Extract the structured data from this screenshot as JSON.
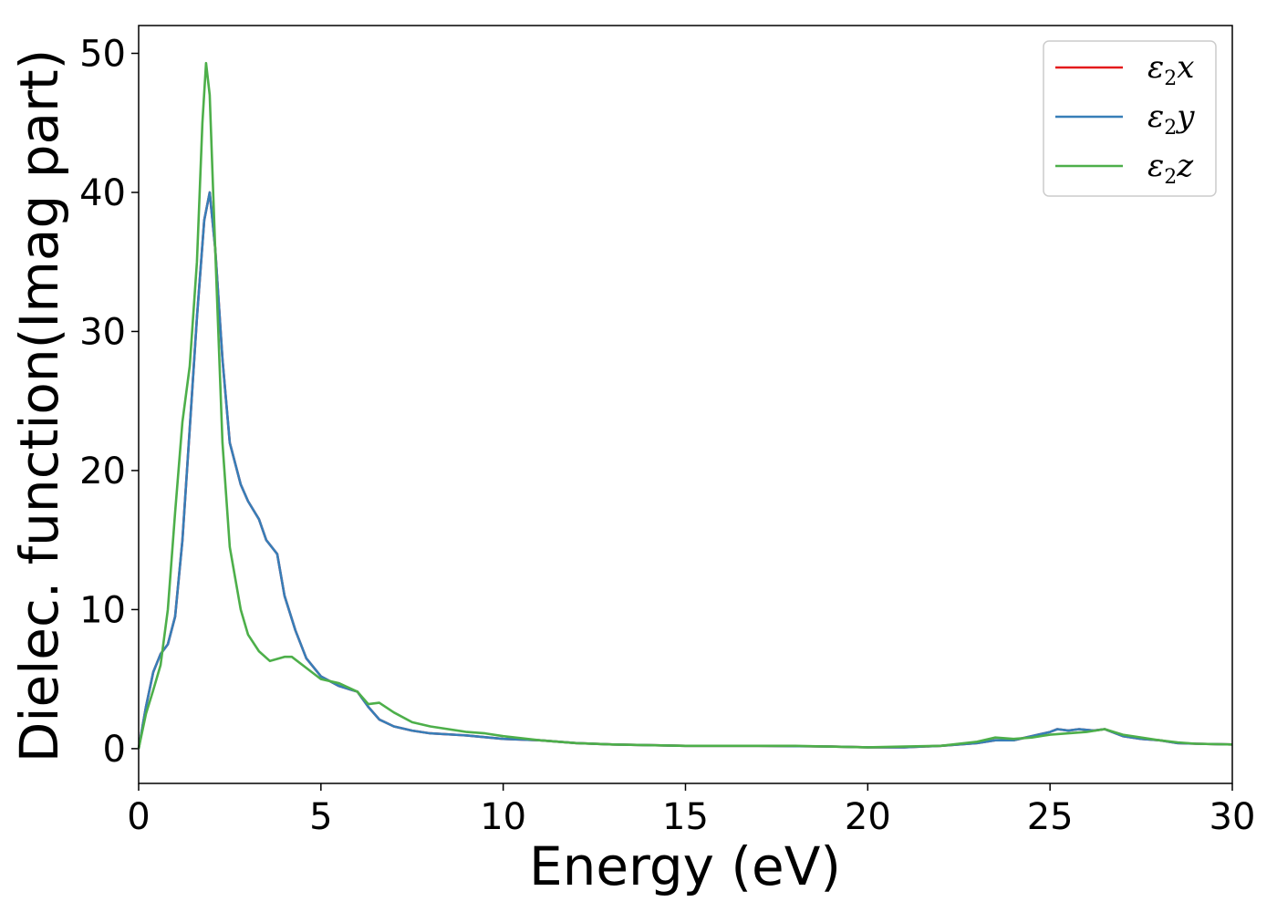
{
  "chart_data": {
    "type": "line",
    "title": "",
    "xlabel": "Energy (eV)",
    "ylabel": "Dielec. function(Imag part)",
    "xlim": [
      0,
      30
    ],
    "ylim": [
      -2.5,
      52
    ],
    "xticks": [
      0,
      5,
      10,
      15,
      20,
      25,
      30
    ],
    "yticks": [
      0,
      10,
      20,
      30,
      40,
      50
    ],
    "grid": false,
    "legend_position": "top-right",
    "series": [
      {
        "name": "ε2x",
        "label_base": "ε",
        "label_sub": "2",
        "label_var": "x",
        "color": "#e41a1c",
        "points": [
          [
            0,
            0
          ],
          [
            0.2,
            3
          ],
          [
            0.4,
            5.5
          ],
          [
            0.6,
            6.8
          ],
          [
            0.8,
            7.5
          ],
          [
            1.0,
            9.5
          ],
          [
            1.2,
            15
          ],
          [
            1.4,
            23
          ],
          [
            1.6,
            31
          ],
          [
            1.8,
            38
          ],
          [
            1.95,
            40
          ],
          [
            2.1,
            36
          ],
          [
            2.3,
            28
          ],
          [
            2.5,
            22
          ],
          [
            2.8,
            19
          ],
          [
            3.0,
            17.8
          ],
          [
            3.3,
            16.5
          ],
          [
            3.5,
            15
          ],
          [
            3.8,
            14
          ],
          [
            4.0,
            11
          ],
          [
            4.3,
            8.5
          ],
          [
            4.6,
            6.5
          ],
          [
            5.0,
            5.2
          ],
          [
            5.5,
            4.5
          ],
          [
            6.0,
            4.1
          ],
          [
            6.3,
            3.0
          ],
          [
            6.6,
            2.1
          ],
          [
            7.0,
            1.6
          ],
          [
            7.5,
            1.3
          ],
          [
            8.0,
            1.1
          ],
          [
            9.0,
            0.95
          ],
          [
            10.0,
            0.7
          ],
          [
            11.0,
            0.6
          ],
          [
            12.0,
            0.4
          ],
          [
            13.0,
            0.3
          ],
          [
            15.0,
            0.2
          ],
          [
            17.0,
            0.2
          ],
          [
            19.0,
            0.15
          ],
          [
            20.0,
            0.1
          ],
          [
            21.0,
            0.1
          ],
          [
            22.0,
            0.2
          ],
          [
            23.0,
            0.4
          ],
          [
            23.5,
            0.6
          ],
          [
            24.0,
            0.6
          ],
          [
            24.5,
            0.9
          ],
          [
            25.0,
            1.2
          ],
          [
            25.2,
            1.4
          ],
          [
            25.5,
            1.3
          ],
          [
            25.8,
            1.4
          ],
          [
            26.2,
            1.3
          ],
          [
            26.5,
            1.4
          ],
          [
            27.0,
            0.9
          ],
          [
            27.5,
            0.7
          ],
          [
            28.0,
            0.6
          ],
          [
            28.5,
            0.4
          ],
          [
            29.0,
            0.35
          ],
          [
            30.0,
            0.3
          ]
        ]
      },
      {
        "name": "ε2y",
        "label_base": "ε",
        "label_sub": "2",
        "label_var": "y",
        "color": "#377eb8",
        "points": [
          [
            0,
            0
          ],
          [
            0.2,
            3
          ],
          [
            0.4,
            5.5
          ],
          [
            0.6,
            6.8
          ],
          [
            0.8,
            7.5
          ],
          [
            1.0,
            9.5
          ],
          [
            1.2,
            15
          ],
          [
            1.4,
            23
          ],
          [
            1.6,
            31
          ],
          [
            1.8,
            38
          ],
          [
            1.95,
            40
          ],
          [
            2.1,
            36
          ],
          [
            2.3,
            28
          ],
          [
            2.5,
            22
          ],
          [
            2.8,
            19
          ],
          [
            3.0,
            17.8
          ],
          [
            3.3,
            16.5
          ],
          [
            3.5,
            15
          ],
          [
            3.8,
            14
          ],
          [
            4.0,
            11
          ],
          [
            4.3,
            8.5
          ],
          [
            4.6,
            6.5
          ],
          [
            5.0,
            5.2
          ],
          [
            5.5,
            4.5
          ],
          [
            6.0,
            4.1
          ],
          [
            6.3,
            3.0
          ],
          [
            6.6,
            2.1
          ],
          [
            7.0,
            1.6
          ],
          [
            7.5,
            1.3
          ],
          [
            8.0,
            1.1
          ],
          [
            9.0,
            0.95
          ],
          [
            10.0,
            0.7
          ],
          [
            11.0,
            0.6
          ],
          [
            12.0,
            0.4
          ],
          [
            13.0,
            0.3
          ],
          [
            15.0,
            0.2
          ],
          [
            17.0,
            0.2
          ],
          [
            19.0,
            0.15
          ],
          [
            20.0,
            0.1
          ],
          [
            21.0,
            0.1
          ],
          [
            22.0,
            0.2
          ],
          [
            23.0,
            0.4
          ],
          [
            23.5,
            0.6
          ],
          [
            24.0,
            0.6
          ],
          [
            24.5,
            0.9
          ],
          [
            25.0,
            1.2
          ],
          [
            25.2,
            1.4
          ],
          [
            25.5,
            1.3
          ],
          [
            25.8,
            1.4
          ],
          [
            26.2,
            1.3
          ],
          [
            26.5,
            1.4
          ],
          [
            27.0,
            0.9
          ],
          [
            27.5,
            0.7
          ],
          [
            28.0,
            0.6
          ],
          [
            28.5,
            0.4
          ],
          [
            29.0,
            0.35
          ],
          [
            30.0,
            0.3
          ]
        ]
      },
      {
        "name": "ε2z",
        "label_base": "ε",
        "label_sub": "2",
        "label_var": "z",
        "color": "#4daf4a",
        "points": [
          [
            0,
            0
          ],
          [
            0.2,
            2.5
          ],
          [
            0.4,
            4.2
          ],
          [
            0.6,
            6.0
          ],
          [
            0.8,
            10
          ],
          [
            1.0,
            17
          ],
          [
            1.2,
            23.5
          ],
          [
            1.4,
            27.5
          ],
          [
            1.6,
            35
          ],
          [
            1.75,
            45
          ],
          [
            1.85,
            49.3
          ],
          [
            1.95,
            47
          ],
          [
            2.1,
            36
          ],
          [
            2.3,
            22
          ],
          [
            2.5,
            14.5
          ],
          [
            2.8,
            10
          ],
          [
            3.0,
            8.2
          ],
          [
            3.3,
            7
          ],
          [
            3.6,
            6.3
          ],
          [
            4.0,
            6.6
          ],
          [
            4.2,
            6.6
          ],
          [
            4.6,
            5.8
          ],
          [
            5.0,
            5.0
          ],
          [
            5.5,
            4.7
          ],
          [
            6.0,
            4.1
          ],
          [
            6.3,
            3.2
          ],
          [
            6.6,
            3.3
          ],
          [
            7.0,
            2.6
          ],
          [
            7.5,
            1.9
          ],
          [
            8.0,
            1.6
          ],
          [
            9.0,
            1.2
          ],
          [
            9.5,
            1.1
          ],
          [
            10.0,
            0.9
          ],
          [
            11.0,
            0.6
          ],
          [
            12.0,
            0.4
          ],
          [
            13.0,
            0.3
          ],
          [
            15.0,
            0.2
          ],
          [
            17.0,
            0.2
          ],
          [
            18.0,
            0.2
          ],
          [
            20.0,
            0.1
          ],
          [
            21.0,
            0.15
          ],
          [
            22.0,
            0.2
          ],
          [
            23.0,
            0.5
          ],
          [
            23.5,
            0.8
          ],
          [
            24.0,
            0.7
          ],
          [
            24.5,
            0.8
          ],
          [
            25.0,
            1.0
          ],
          [
            25.5,
            1.1
          ],
          [
            26.0,
            1.2
          ],
          [
            26.5,
            1.4
          ],
          [
            27.0,
            1.0
          ],
          [
            27.5,
            0.8
          ],
          [
            28.0,
            0.6
          ],
          [
            28.5,
            0.45
          ],
          [
            29.0,
            0.35
          ],
          [
            30.0,
            0.3
          ]
        ]
      }
    ]
  }
}
